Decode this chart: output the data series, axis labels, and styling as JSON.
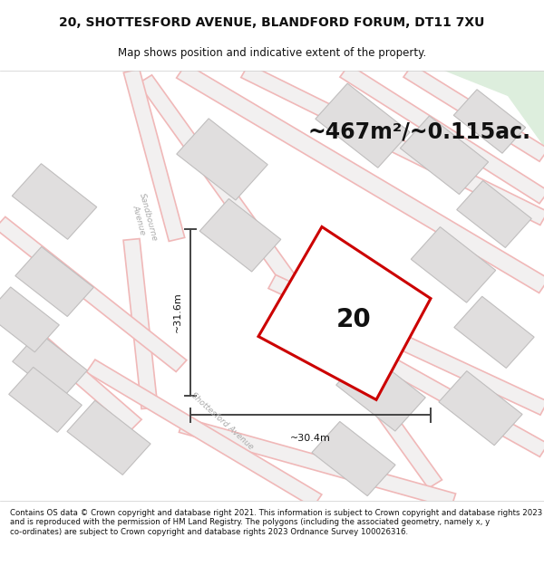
{
  "title": "20, SHOTTESFORD AVENUE, BLANDFORD FORUM, DT11 7XU",
  "subtitle": "Map shows position and indicative extent of the property.",
  "area_text": "~467m²/~0.115ac.",
  "label_20": "20",
  "dim_vertical": "~31.6m",
  "dim_horizontal": "~30.4m",
  "footer": "Contains OS data © Crown copyright and database right 2021. This information is subject to Crown copyright and database rights 2023 and is reproduced with the permission of HM Land Registry. The polygons (including the associated geometry, namely x, y co-ordinates) are subject to Crown copyright and database rights 2023 Ordnance Survey 100026316.",
  "map_bg": "#f2f0f0",
  "road_color": "#f0b8b8",
  "building_fill": "#e0dede",
  "building_edge": "#c0bebe",
  "plot_outline": "#cc0000",
  "plot_fill": "#ffffff",
  "dim_line_color": "#444444",
  "text_color": "#111111",
  "road_text_color": "#aaaaaa",
  "title_fontsize": 10,
  "subtitle_fontsize": 8.5,
  "area_fontsize": 17,
  "label_fontsize": 20,
  "dim_fontsize": 8,
  "footer_fontsize": 6.2,
  "green_fill": "#ddeedd"
}
